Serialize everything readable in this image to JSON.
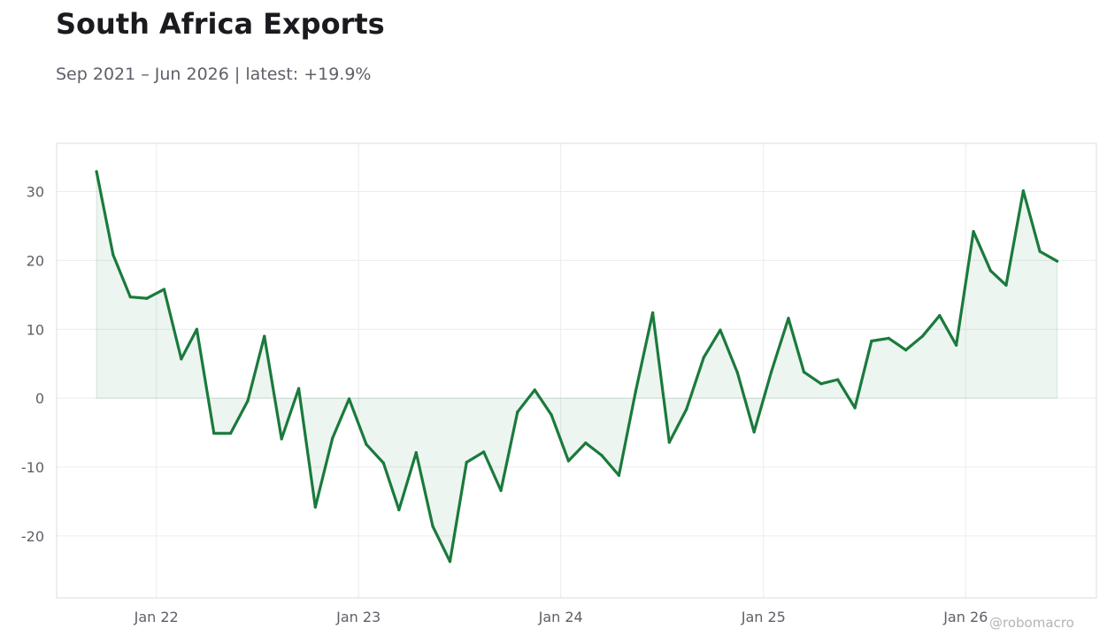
{
  "title": "South Africa Exports",
  "subtitle": "Sep 2021 – Jun 2026 | latest: +19.9%",
  "watermark": "@robomacro",
  "colors": {
    "line": "#1a7a3c",
    "fill": "#1a7a3c",
    "grid": "#ececec",
    "frame": "#dcdcdc",
    "text": "#5f6068"
  },
  "chart_data": {
    "type": "area",
    "title": "South Africa Exports",
    "subtitle": "Sep 2021 – Jun 2026 | latest: +19.9%",
    "xlabel": "",
    "ylabel": "",
    "grid": true,
    "legend": "none",
    "ylim": [
      -29,
      37
    ],
    "xlim": [
      "2021-07-05",
      "2026-08-25"
    ],
    "x_ticks": [
      {
        "date": "2022-01-01",
        "label": "Jan 22"
      },
      {
        "date": "2023-01-01",
        "label": "Jan 23"
      },
      {
        "date": "2024-01-01",
        "label": "Jan 24"
      },
      {
        "date": "2025-01-01",
        "label": "Jan 25"
      },
      {
        "date": "2026-01-01",
        "label": "Jan 26"
      }
    ],
    "y_ticks": [
      30,
      20,
      10,
      0,
      -10,
      -20
    ],
    "y_tick_labels": [
      "30",
      "20",
      "10",
      "0",
      "-10",
      "-20"
    ],
    "series": [
      {
        "x": [
          "2021-09",
          "2021-10",
          "2021-11",
          "2021-12",
          "2022-01",
          "2022-02",
          "2022-03",
          "2022-04",
          "2022-05",
          "2022-06",
          "2022-07",
          "2022-08",
          "2022-09",
          "2022-10",
          "2022-11",
          "2022-12",
          "2023-01",
          "2023-02",
          "2023-03",
          "2023-04",
          "2023-05",
          "2023-06",
          "2023-07",
          "2023-08",
          "2023-09",
          "2023-10",
          "2023-11",
          "2023-12",
          "2024-01",
          "2024-02",
          "2024-03",
          "2024-04",
          "2024-05",
          "2024-06",
          "2024-07",
          "2024-08",
          "2024-09",
          "2024-10",
          "2024-11",
          "2024-12",
          "2025-01",
          "2025-02",
          "2025-03",
          "2025-04",
          "2025-05",
          "2025-06",
          "2025-07",
          "2025-08",
          "2025-09",
          "2025-10",
          "2025-11",
          "2025-12",
          "2026-01",
          "2026-02",
          "2026-03",
          "2026-04",
          "2026-05",
          "2026-06"
        ],
        "values": [
          32.9,
          20.8,
          14.7,
          14.5,
          15.8,
          5.7,
          10.0,
          -5.1,
          -5.1,
          -0.4,
          9.0,
          -5.9,
          1.4,
          -15.8,
          -5.8,
          -0.1,
          -6.7,
          -9.4,
          -16.2,
          -7.9,
          -18.6,
          -23.7,
          -9.3,
          -7.8,
          -13.4,
          -2.0,
          1.2,
          -2.4,
          -9.1,
          -6.5,
          -8.3,
          -11.2,
          0.9,
          12.4,
          -6.4,
          -1.6,
          5.9,
          9.9,
          3.7,
          -4.9,
          3.8,
          11.6,
          3.8,
          2.1,
          2.7,
          -1.4,
          8.3,
          8.7,
          7.0,
          9.0,
          12.0,
          7.7,
          24.2,
          18.5,
          16.4,
          30.1,
          21.3,
          19.9
        ]
      }
    ]
  }
}
